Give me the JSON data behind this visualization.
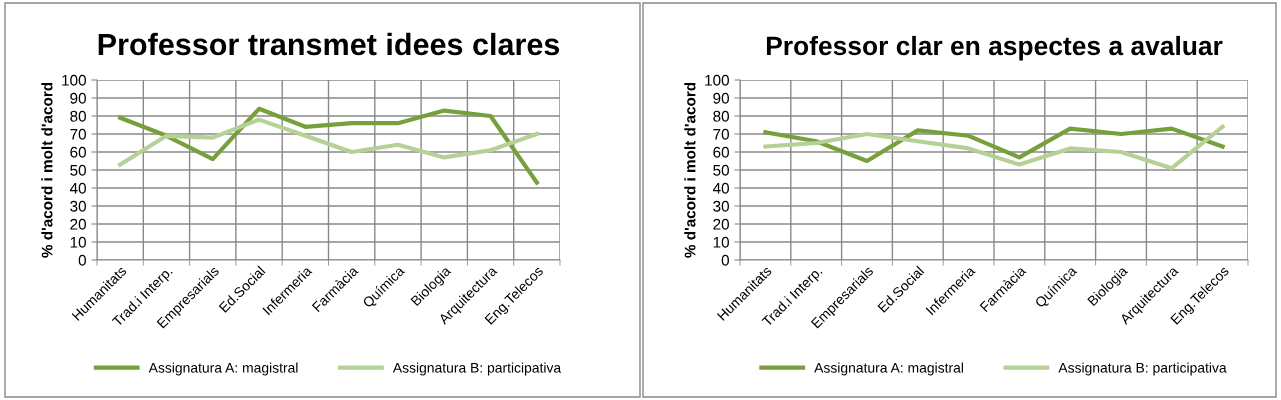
{
  "chart_data": [
    {
      "type": "line",
      "title": "Professor transmet idees clares",
      "ylabel": "% d'acord i molt d'acord",
      "categories": [
        "Humanitats",
        "Trad.i Interp.",
        "Empresarials",
        "Ed.Social",
        "Infermeria",
        "Farmàcia",
        "Química",
        "Biologia",
        "Arquitectura",
        "Eng.Telecos"
      ],
      "series": [
        {
          "name": "Assignatura A: magistral",
          "color": "#77a03c",
          "values": [
            79,
            69,
            56,
            84,
            74,
            76,
            76,
            83,
            80,
            43
          ]
        },
        {
          "name": "Assignatura B: participativa",
          "color": "#b5d195",
          "values": [
            53,
            69,
            68,
            78,
            69,
            60,
            64,
            57,
            61,
            70
          ]
        }
      ],
      "ylim": [
        0,
        100
      ],
      "yticks": [
        0,
        10,
        20,
        30,
        40,
        50,
        60,
        70,
        80,
        90,
        100
      ],
      "grid": true,
      "legend": "bottom",
      "marker": "none",
      "line_style": "solid"
    },
    {
      "type": "line",
      "title": "Professor clar en aspectes a avaluar",
      "ylabel": "% d'acord i molt d'acord",
      "categories": [
        "Humanitats",
        "Trad.i Interp.",
        "Empresarials",
        "Ed.Social",
        "Infermeria",
        "Farmàcia",
        "Química",
        "Biologia",
        "Arquitectura",
        "Eng.Telecos"
      ],
      "series": [
        {
          "name": "Assignatura A: magistral",
          "color": "#77a03c",
          "values": [
            71,
            66,
            55,
            72,
            69,
            57,
            73,
            70,
            73,
            63
          ]
        },
        {
          "name": "Assignatura B: participativa",
          "color": "#b5d195",
          "values": [
            63,
            65,
            70,
            66,
            62,
            53,
            62,
            60,
            51,
            74
          ]
        }
      ],
      "ylim": [
        0,
        100
      ],
      "yticks": [
        0,
        10,
        20,
        30,
        40,
        50,
        60,
        70,
        80,
        90,
        100
      ],
      "grid": true,
      "legend": "bottom",
      "marker": "none",
      "line_style": "solid"
    }
  ]
}
